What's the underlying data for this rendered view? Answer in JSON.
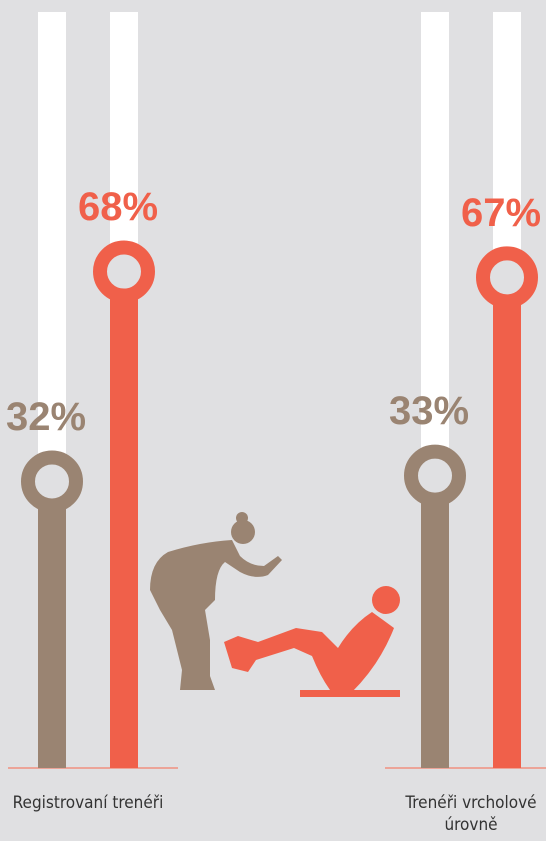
{
  "chart_data": {
    "type": "bar",
    "categories": [
      "Registrovaní trenéři",
      "Trenéři vrcholové úrovně"
    ],
    "series": [
      {
        "color": "#9a8472",
        "values": [
          32,
          33
        ],
        "value_labels": [
          "32%",
          "33%"
        ]
      },
      {
        "color": "#f0604a",
        "values": [
          68,
          67
        ],
        "value_labels": [
          "68%",
          "67%"
        ]
      }
    ],
    "ylim": [
      0,
      100
    ]
  }
}
